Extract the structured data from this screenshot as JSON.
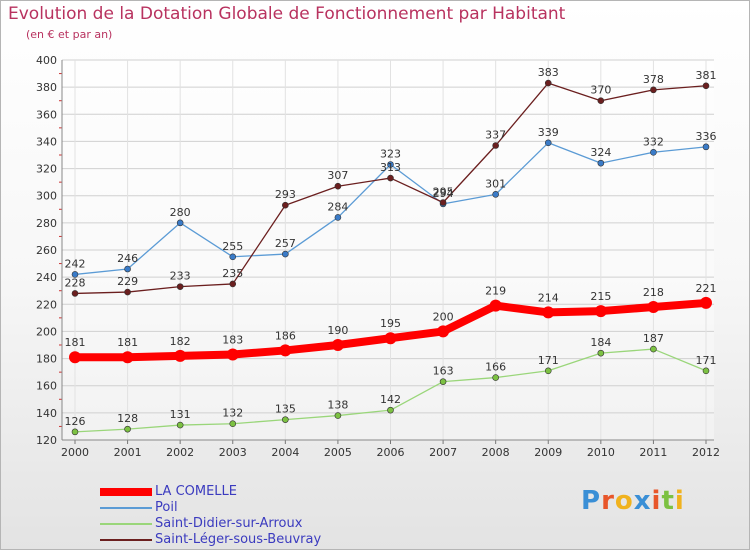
{
  "title": "Evolution de la Dotation Globale de Fonctionnement par Habitant",
  "subtitle": "(en € et par an)",
  "colors": {
    "title": "#b8325f",
    "legend_text": "#3b3bbf",
    "axis_text": "#333333"
  },
  "logo": {
    "letters": [
      {
        "char": "P",
        "color": "#3a8fd6"
      },
      {
        "char": "r",
        "color": "#e8562a"
      },
      {
        "char": "o",
        "color": "#f0b21e"
      },
      {
        "char": "x",
        "color": "#3a8fd6"
      },
      {
        "char": "i",
        "color": "#e8562a"
      },
      {
        "char": "t",
        "color": "#7cc142"
      },
      {
        "char": "i",
        "color": "#f0b21e"
      }
    ]
  },
  "chart_data": {
    "type": "line",
    "title": "Evolution de la Dotation Globale de Fonctionnement par Habitant",
    "subtitle": "(en € et par an)",
    "x": [
      "2000",
      "2001",
      "2002",
      "2003",
      "2004",
      "2005",
      "2006",
      "2007",
      "2008",
      "2009",
      "2010",
      "2011",
      "2012"
    ],
    "ylim": [
      120,
      400
    ],
    "yticks": [
      120,
      140,
      160,
      180,
      200,
      220,
      240,
      260,
      280,
      300,
      320,
      340,
      360,
      380,
      400
    ],
    "grid": true,
    "legend_position": "bottom-left",
    "series": [
      {
        "name": "LA COMELLE",
        "color": "#ff0000",
        "marker": "#ff0000",
        "emphasis": true,
        "values": [
          181,
          181,
          182,
          183,
          186,
          190,
          195,
          200,
          219,
          214,
          215,
          218,
          221
        ]
      },
      {
        "name": "Poil",
        "color": "#5b9bd5",
        "marker": "#3a7bc8",
        "emphasis": false,
        "values": [
          242,
          246,
          280,
          255,
          257,
          284,
          323,
          294,
          301,
          339,
          324,
          332,
          336
        ]
      },
      {
        "name": "Saint-Didier-sur-Arroux",
        "color": "#9ad67a",
        "marker": "#7cc142",
        "emphasis": false,
        "values": [
          126,
          128,
          131,
          132,
          135,
          138,
          142,
          163,
          166,
          171,
          184,
          187,
          171
        ]
      },
      {
        "name": "Saint-Léger-sous-Beuvray",
        "color": "#6b1f1f",
        "marker": "#6b1f1f",
        "emphasis": false,
        "values": [
          228,
          229,
          233,
          235,
          293,
          307,
          313,
          295,
          337,
          383,
          370,
          378,
          381
        ]
      }
    ]
  }
}
